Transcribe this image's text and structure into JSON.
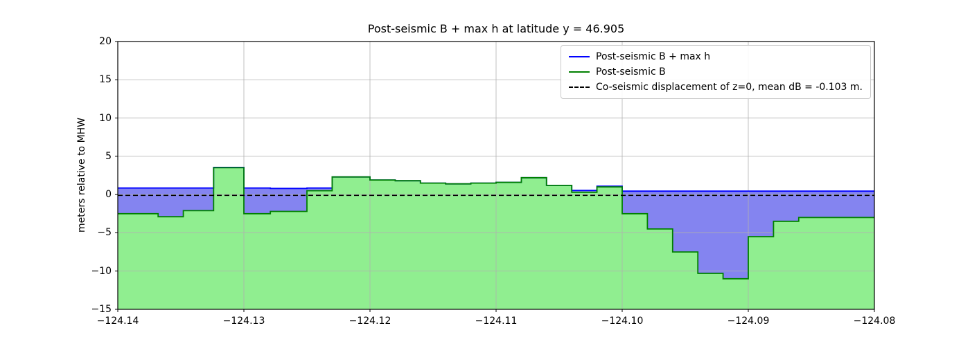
{
  "figure": {
    "title": "Post-seismic B + max h at latitude y = 46.905",
    "ylabel": "meters relative to MHW",
    "xtick_labels": [
      "−124.14",
      "−124.13",
      "−124.12",
      "−124.11",
      "−124.10",
      "−124.09",
      "−124.08"
    ],
    "ytick_labels": [
      "−15",
      "−10",
      "−5",
      "0",
      "5",
      "10",
      "15",
      "20"
    ],
    "legend": [
      {
        "label": "Post-seismic B + max h",
        "color": "#0000ff",
        "dashed": false
      },
      {
        "label": "Post-seismic B",
        "color": "#008000",
        "dashed": false
      },
      {
        "label": "Co-seismic displacement of z=0, mean dB = -0.103 m.",
        "color": "#000000",
        "dashed": true
      }
    ],
    "colors": {
      "blue_line": "#0000ff",
      "blue_fill": "#8484f0",
      "green_line": "#008000",
      "green_fill": "#90ee90",
      "dashed_line": "#000000",
      "grid": "#b0b0b0",
      "spine": "#000000",
      "background": "#ffffff"
    }
  },
  "chart_data": {
    "type": "area",
    "title": "Post-seismic B + max h at latitude y = 46.905",
    "xlabel": "",
    "ylabel": "meters relative to MHW",
    "xlim": [
      -124.14,
      -124.08
    ],
    "ylim": [
      -15,
      20
    ],
    "xticks": [
      -124.14,
      -124.13,
      -124.12,
      -124.11,
      -124.1,
      -124.09,
      -124.08
    ],
    "yticks": [
      -15,
      -10,
      -5,
      0,
      5,
      10,
      15,
      20
    ],
    "grid": true,
    "legend_position": "upper right",
    "mean_dB": -0.103,
    "dashed_y": -0.103,
    "step_edges_x": [
      -124.14,
      -124.1368,
      -124.1348,
      -124.1324,
      -124.13,
      -124.1279,
      -124.125,
      -124.123,
      -124.12,
      -124.118,
      -124.116,
      -124.114,
      -124.112,
      -124.11,
      -124.108,
      -124.106,
      -124.104,
      -124.102,
      -124.1,
      -124.098,
      -124.096,
      -124.094,
      -124.092,
      -124.09,
      -124.088,
      -124.086,
      -124.08
    ],
    "series": [
      {
        "name": "Post-seismic B + max h",
        "style": "step",
        "color": "#0000ff",
        "values": [
          0.85,
          0.85,
          0.85,
          3.55,
          0.85,
          0.8,
          0.85,
          2.3,
          1.9,
          1.8,
          1.5,
          1.4,
          1.5,
          1.6,
          2.2,
          1.2,
          0.55,
          1.1,
          0.45,
          0.45,
          0.45,
          0.45,
          0.45,
          0.45,
          0.45,
          0.45
        ]
      },
      {
        "name": "Post-seismic B",
        "style": "step",
        "color": "#008000",
        "values": [
          -2.5,
          -2.9,
          -2.1,
          3.5,
          -2.5,
          -2.2,
          0.5,
          2.3,
          1.9,
          1.8,
          1.5,
          1.4,
          1.5,
          1.6,
          2.2,
          1.2,
          0.3,
          1.0,
          -2.5,
          -4.5,
          -7.5,
          -10.3,
          -11.0,
          -5.5,
          -3.5,
          -3.0
        ]
      },
      {
        "name": "Co-seismic displacement of z=0",
        "style": "hline-dashed",
        "y": -0.103
      }
    ]
  }
}
